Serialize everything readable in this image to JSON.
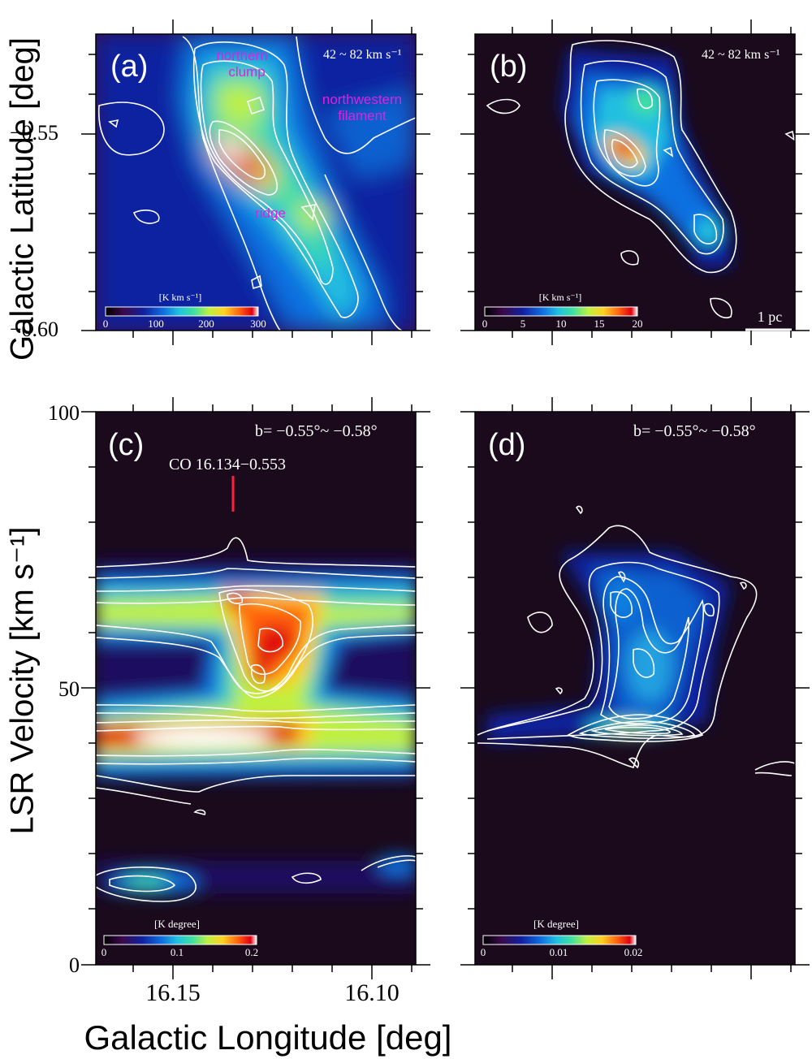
{
  "figure": {
    "ylabel_top": "Galactic Latitude [deg]",
    "ylabel_bottom": "LSR Velocity [km s⁻¹]",
    "xlabel": "Galactic Longitude [deg]",
    "x_ticks": [
      "16.15",
      "16.10"
    ],
    "y_ticks_top": [
      "−0.55",
      "−0.60"
    ],
    "y_ticks_bottom": [
      "100",
      "50",
      "0"
    ]
  },
  "panels": {
    "a": {
      "tag": "(a)",
      "range_label": "42 ~ 82 km s⁻¹",
      "annotations": [
        "northern",
        "clump",
        "northwestern",
        "filament",
        "ridge"
      ],
      "colorbar": {
        "unit": "[K km s⁻¹]",
        "ticks": [
          "0",
          "100",
          "200",
          "300"
        ]
      }
    },
    "b": {
      "tag": "(b)",
      "range_label": "42 ~ 82 km s⁻¹",
      "scalebar": "1 pc",
      "colorbar": {
        "unit": "[K km s⁻¹]",
        "ticks": [
          "0",
          "5",
          "10",
          "15",
          "20"
        ]
      }
    },
    "c": {
      "tag": "(c)",
      "range_label": "b= −0.55°~ −0.58°",
      "source_label": "CO 16.134−0.553",
      "colorbar": {
        "unit": "[K degree]",
        "ticks": [
          "0",
          "0.1",
          "0.2"
        ]
      }
    },
    "d": {
      "tag": "(d)",
      "range_label": "b= −0.55°~ −0.58°",
      "colorbar": {
        "unit": "[K degree]",
        "ticks": [
          "0",
          "0.01",
          "0.02"
        ]
      }
    }
  },
  "colors": {
    "background": "#1a0a1c",
    "contour": "#ffffff",
    "annotation": "#e020e0",
    "marker": "#ff2040",
    "colormap": [
      "#000000",
      "#3a0a4a",
      "#1020a0",
      "#1070e0",
      "#20c0e0",
      "#40e0a0",
      "#c0f040",
      "#ffd020",
      "#ff6010",
      "#e00010",
      "#ffffff"
    ]
  },
  "chart_data": [
    {
      "type": "heatmap",
      "panel": "a",
      "title": "",
      "xlabel": "Galactic Longitude [deg]",
      "ylabel": "Galactic Latitude [deg]",
      "xlim": [
        16.17,
        16.09
      ],
      "ylim": [
        -0.6,
        -0.53
      ],
      "colorbar_range": [
        0,
        300
      ],
      "features": [
        {
          "name": "northern clump",
          "l": 16.148,
          "b": -0.545,
          "peak": 180
        },
        {
          "name": "ridge",
          "l": 16.14,
          "b": -0.553,
          "peak": 300
        },
        {
          "name": "northwestern filament",
          "l": 16.105,
          "b": -0.548,
          "peak": 40
        }
      ]
    },
    {
      "type": "heatmap",
      "panel": "b",
      "title": "",
      "xlabel": "Galactic Longitude [deg]",
      "ylabel": "Galactic Latitude [deg]",
      "ylim": [
        -0.6,
        -0.53
      ],
      "colorbar_range": [
        0,
        20
      ],
      "features": [
        {
          "l": 16.14,
          "b": -0.553,
          "peak": 20
        },
        {
          "l": 16.135,
          "b": -0.544,
          "peak": 12
        },
        {
          "l": 16.115,
          "b": -0.574,
          "peak": 9
        }
      ]
    },
    {
      "type": "heatmap",
      "panel": "c",
      "title": "",
      "xlabel": "Galactic Longitude [deg]",
      "ylabel": "LSR Velocity [km s⁻¹]",
      "xlim": [
        16.17,
        16.09
      ],
      "ylim": [
        0,
        100
      ],
      "colorbar_range": [
        0,
        0.2
      ],
      "features": [
        {
          "name": "CO 16.134−0.553",
          "l": 16.134,
          "v": 78
        },
        {
          "l": 16.15,
          "v": 40,
          "peak": 0.2
        },
        {
          "l": 16.125,
          "v": 58,
          "peak": 0.18
        },
        {
          "l": 16.165,
          "v": 15,
          "peak": 0.08
        },
        {
          "l": 16.095,
          "v": 19,
          "peak": 0.07
        }
      ]
    },
    {
      "type": "heatmap",
      "panel": "d",
      "title": "",
      "xlabel": "Galactic Longitude [deg]",
      "ylabel": "LSR Velocity [km s⁻¹]",
      "ylim": [
        0,
        100
      ],
      "colorbar_range": [
        0,
        0.02
      ],
      "features": [
        {
          "l": 16.13,
          "v": 42,
          "peak": 0.012
        },
        {
          "l": 16.135,
          "v": 65,
          "peak": 0.008
        },
        {
          "l": 16.13,
          "v": 52,
          "peak": 0.009
        }
      ]
    }
  ]
}
